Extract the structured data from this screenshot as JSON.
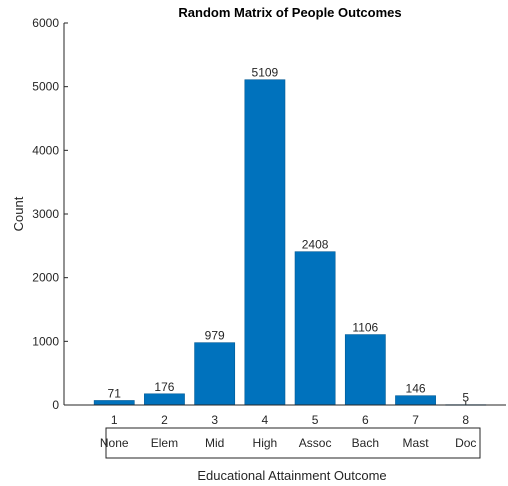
{
  "chart_data": {
    "type": "bar",
    "title": "Random Matrix of People Outcomes",
    "xlabel": "Educational Attainment Outcome",
    "ylabel": "Count",
    "x": [
      1,
      2,
      3,
      4,
      5,
      6,
      7,
      8
    ],
    "values": [
      71,
      176,
      979,
      5109,
      2408,
      1106,
      146,
      5
    ],
    "categories": [
      "None",
      "Elem",
      "Mid",
      "High",
      "Assoc",
      "Bach",
      "Mast",
      "Doc"
    ],
    "ylim": [
      0,
      6000
    ],
    "xlim": [
      0,
      9
    ],
    "yticks": [
      0,
      1000,
      2000,
      3000,
      4000,
      5000,
      6000
    ],
    "ytick_labels": [
      "0",
      "1000",
      "2000",
      "3000",
      "4000",
      "5000",
      "6000"
    ],
    "xtick_labels": [
      "1",
      "2",
      "3",
      "4",
      "5",
      "6",
      "7",
      "8"
    ],
    "data_labels": [
      "71",
      "176",
      "979",
      "5109",
      "2408",
      "1106",
      "146",
      "5"
    ],
    "bar_color": "#0072BD",
    "bar_edge_color": "#005A96",
    "grid": false,
    "legend": false
  }
}
